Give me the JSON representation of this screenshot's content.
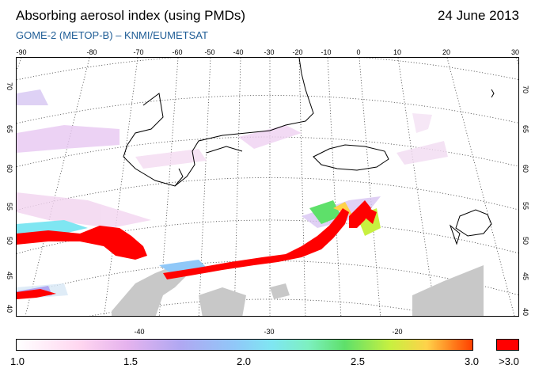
{
  "header": {
    "title": "Absorbing aerosol index (using PMDs)",
    "date": "24 June 2013",
    "subtitle": "GOME-2 (METOP-B)  –  KNMI/EUMETSAT"
  },
  "map": {
    "top_longitude_ticks": [
      "-90",
      "-80",
      "-70",
      "-60",
      "-50",
      "-40",
      "-30",
      "-20",
      "-10",
      "0",
      "10",
      "20",
      "30"
    ],
    "bottom_longitude_ticks": [
      "-40",
      "-30",
      "-20"
    ],
    "left_latitude_ticks": [
      "70",
      "65",
      "60",
      "55",
      "50",
      "45",
      "40"
    ],
    "right_latitude_ticks": [
      "70",
      "65",
      "60",
      "55",
      "50",
      "45",
      "40"
    ],
    "colors": {
      "coastline": "#000000",
      "graticule": "#333333",
      "high_aerosol": "#ff0000",
      "missing_data": "#c8c8c8"
    }
  },
  "colorbar": {
    "labels": [
      "1.0",
      "1.5",
      "2.0",
      "2.5",
      "3.0"
    ],
    "overflow_label": ">3.0",
    "overflow_color": "#ff0000"
  }
}
